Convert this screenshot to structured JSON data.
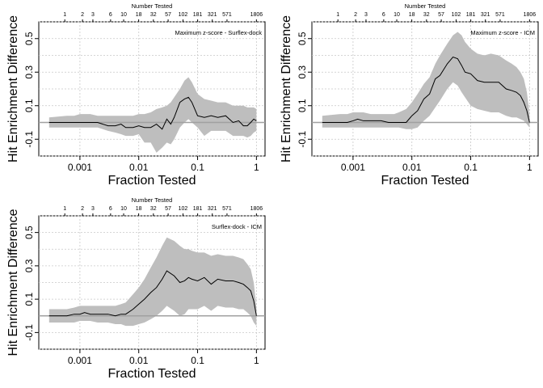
{
  "chart_data": [
    {
      "type": "area",
      "panel_label": "Maximum z-score - Surflex-dock",
      "xlabel": "Fraction Tested",
      "ylabel": "Hit Enrichment Difference",
      "top_axis_label": "Number Tested",
      "x_scale": "log",
      "xlim": [
        0.0002,
        1.4
      ],
      "ylim": [
        -0.2,
        0.6
      ],
      "x_ticks": [
        0.001,
        0.01,
        0.1,
        1
      ],
      "x_tick_labels": [
        "0.001",
        "0.01",
        "0.1",
        "1"
      ],
      "y_ticks": [
        -0.1,
        0.1,
        0.3,
        0.5
      ],
      "y_tick_labels": [
        "-0.1",
        "0.1",
        "0.3",
        "0.5"
      ],
      "top_ticks": [
        1,
        2,
        3,
        6,
        10,
        18,
        32,
        57,
        102,
        181,
        321,
        571,
        1806
      ],
      "top_tick_labels": [
        "1",
        "2",
        "3",
        "6",
        "10",
        "18",
        "32",
        "57",
        "102",
        "181",
        "321",
        "571",
        "1806"
      ],
      "reference_line": 0,
      "series": [
        {
          "name": "mean",
          "x": [
            0.0003,
            0.0006,
            0.0008,
            0.001,
            0.0015,
            0.002,
            0.003,
            0.004,
            0.005,
            0.006,
            0.008,
            0.01,
            0.0125,
            0.016,
            0.02,
            0.025,
            0.03,
            0.035,
            0.04,
            0.05,
            0.06,
            0.07,
            0.08,
            0.1,
            0.13,
            0.17,
            0.22,
            0.3,
            0.4,
            0.5,
            0.6,
            0.7,
            0.8,
            0.9,
            1.0
          ],
          "values": [
            0.0,
            0.0,
            0.0,
            0.0,
            0.0,
            0.0,
            -0.02,
            -0.02,
            -0.01,
            -0.03,
            -0.03,
            -0.02,
            -0.03,
            -0.03,
            -0.01,
            -0.04,
            0.02,
            -0.01,
            0.03,
            0.12,
            0.14,
            0.15,
            0.12,
            0.04,
            0.03,
            0.04,
            0.03,
            0.04,
            0.0,
            0.01,
            -0.02,
            -0.02,
            0.0,
            0.02,
            0.01
          ]
        },
        {
          "name": "band_upper",
          "x": [
            0.0003,
            0.0006,
            0.0008,
            0.001,
            0.0015,
            0.002,
            0.003,
            0.004,
            0.005,
            0.006,
            0.008,
            0.01,
            0.0125,
            0.016,
            0.02,
            0.025,
            0.03,
            0.035,
            0.04,
            0.05,
            0.06,
            0.07,
            0.08,
            0.1,
            0.13,
            0.17,
            0.22,
            0.3,
            0.4,
            0.5,
            0.6,
            0.7,
            0.8,
            0.9,
            1.0
          ],
          "values": [
            0.03,
            0.04,
            0.04,
            0.05,
            0.05,
            0.04,
            0.04,
            0.04,
            0.04,
            0.04,
            0.04,
            0.05,
            0.05,
            0.06,
            0.08,
            0.09,
            0.1,
            0.12,
            0.15,
            0.2,
            0.25,
            0.27,
            0.24,
            0.17,
            0.14,
            0.13,
            0.12,
            0.12,
            0.1,
            0.1,
            0.1,
            0.09,
            0.09,
            0.09,
            0.08
          ]
        },
        {
          "name": "band_lower",
          "x": [
            0.0003,
            0.0006,
            0.0008,
            0.001,
            0.0015,
            0.002,
            0.003,
            0.004,
            0.005,
            0.006,
            0.008,
            0.01,
            0.0125,
            0.016,
            0.02,
            0.025,
            0.03,
            0.035,
            0.04,
            0.05,
            0.06,
            0.07,
            0.08,
            0.1,
            0.13,
            0.17,
            0.22,
            0.3,
            0.4,
            0.5,
            0.6,
            0.7,
            0.8,
            0.9,
            1.0
          ],
          "values": [
            -0.03,
            -0.03,
            -0.03,
            -0.03,
            -0.03,
            -0.03,
            -0.05,
            -0.06,
            -0.07,
            -0.08,
            -0.08,
            -0.07,
            -0.12,
            -0.12,
            -0.18,
            -0.15,
            -0.12,
            -0.13,
            -0.1,
            -0.03,
            0.0,
            0.02,
            0.0,
            -0.03,
            -0.08,
            -0.05,
            -0.05,
            -0.05,
            -0.08,
            -0.08,
            -0.08,
            -0.09,
            -0.08,
            -0.06,
            -0.05
          ]
        }
      ]
    },
    {
      "type": "area",
      "panel_label": "Maximum z-score - ICM",
      "xlabel": "Fraction Tested",
      "ylabel": "Hit Enrichment Difference",
      "top_axis_label": "Number Tested",
      "x_scale": "log",
      "xlim": [
        0.0002,
        1.4
      ],
      "ylim": [
        -0.2,
        0.6
      ],
      "x_ticks": [
        0.001,
        0.01,
        0.1,
        1
      ],
      "x_tick_labels": [
        "0.001",
        "0.01",
        "0.1",
        "1"
      ],
      "y_ticks": [
        -0.1,
        0.1,
        0.3,
        0.5
      ],
      "y_tick_labels": [
        "-0.1",
        "0.1",
        "0.3",
        "0.5"
      ],
      "top_ticks": [
        1,
        2,
        3,
        6,
        10,
        18,
        32,
        57,
        102,
        181,
        321,
        571,
        1806
      ],
      "top_tick_labels": [
        "1",
        "2",
        "3",
        "6",
        "10",
        "18",
        "32",
        "57",
        "102",
        "181",
        "321",
        "571",
        "1806"
      ],
      "reference_line": 0,
      "series": [
        {
          "name": "mean",
          "x": [
            0.0003,
            0.0006,
            0.0008,
            0.001,
            0.0012,
            0.0015,
            0.002,
            0.003,
            0.004,
            0.005,
            0.006,
            0.008,
            0.01,
            0.0125,
            0.016,
            0.02,
            0.025,
            0.03,
            0.04,
            0.05,
            0.06,
            0.07,
            0.08,
            0.1,
            0.13,
            0.17,
            0.22,
            0.3,
            0.4,
            0.5,
            0.6,
            0.7,
            0.8,
            0.9,
            1.0
          ],
          "values": [
            0.0,
            0.0,
            0.0,
            0.01,
            0.02,
            0.01,
            0.01,
            0.01,
            0.0,
            0.0,
            0.0,
            0.0,
            0.04,
            0.07,
            0.14,
            0.17,
            0.26,
            0.28,
            0.35,
            0.39,
            0.38,
            0.34,
            0.3,
            0.29,
            0.25,
            0.24,
            0.24,
            0.24,
            0.2,
            0.19,
            0.18,
            0.16,
            0.12,
            0.07,
            0.0
          ]
        },
        {
          "name": "band_upper",
          "x": [
            0.0003,
            0.0006,
            0.0008,
            0.001,
            0.0012,
            0.0015,
            0.002,
            0.003,
            0.004,
            0.005,
            0.006,
            0.008,
            0.01,
            0.0125,
            0.016,
            0.02,
            0.025,
            0.03,
            0.04,
            0.05,
            0.06,
            0.07,
            0.08,
            0.1,
            0.13,
            0.17,
            0.22,
            0.3,
            0.4,
            0.5,
            0.6,
            0.7,
            0.8,
            0.9,
            1.0
          ],
          "values": [
            0.04,
            0.05,
            0.05,
            0.06,
            0.06,
            0.06,
            0.05,
            0.05,
            0.05,
            0.05,
            0.06,
            0.08,
            0.12,
            0.17,
            0.23,
            0.27,
            0.35,
            0.4,
            0.47,
            0.52,
            0.54,
            0.52,
            0.48,
            0.44,
            0.41,
            0.4,
            0.41,
            0.4,
            0.37,
            0.35,
            0.33,
            0.3,
            0.26,
            0.18,
            0.05
          ]
        },
        {
          "name": "band_lower",
          "x": [
            0.0003,
            0.0006,
            0.0008,
            0.001,
            0.0012,
            0.0015,
            0.002,
            0.003,
            0.004,
            0.005,
            0.006,
            0.008,
            0.01,
            0.0125,
            0.016,
            0.02,
            0.025,
            0.03,
            0.04,
            0.05,
            0.06,
            0.07,
            0.08,
            0.1,
            0.13,
            0.17,
            0.22,
            0.3,
            0.4,
            0.5,
            0.6,
            0.7,
            0.8,
            0.9,
            1.0
          ],
          "values": [
            -0.03,
            -0.03,
            -0.03,
            -0.03,
            -0.03,
            -0.03,
            -0.03,
            -0.03,
            -0.03,
            -0.03,
            -0.03,
            -0.04,
            -0.04,
            -0.03,
            0.01,
            0.04,
            0.09,
            0.13,
            0.2,
            0.24,
            0.22,
            0.18,
            0.15,
            0.1,
            0.08,
            0.07,
            0.06,
            0.06,
            0.04,
            0.03,
            0.03,
            0.02,
            0.01,
            -0.01,
            -0.03
          ]
        }
      ]
    },
    {
      "type": "area",
      "panel_label": "Surflex-dock - ICM",
      "xlabel": "Fraction Tested",
      "ylabel": "Hit Enrichment Difference",
      "top_axis_label": "Number Tested",
      "x_scale": "log",
      "xlim": [
        0.0002,
        1.4
      ],
      "ylim": [
        -0.2,
        0.6
      ],
      "x_ticks": [
        0.001,
        0.01,
        0.1,
        1
      ],
      "x_tick_labels": [
        "0.001",
        "0.01",
        "0.1",
        "1"
      ],
      "y_ticks": [
        -0.1,
        0.1,
        0.3,
        0.5
      ],
      "y_tick_labels": [
        "-0.1",
        "0.1",
        "0.3",
        "0.5"
      ],
      "top_ticks": [
        1,
        2,
        3,
        6,
        10,
        18,
        32,
        57,
        102,
        181,
        321,
        571,
        1806
      ],
      "top_tick_labels": [
        "1",
        "2",
        "3",
        "6",
        "10",
        "18",
        "32",
        "57",
        "102",
        "181",
        "321",
        "571",
        "1806"
      ],
      "reference_line": 0,
      "series": [
        {
          "name": "mean",
          "x": [
            0.0003,
            0.0006,
            0.0008,
            0.001,
            0.0012,
            0.0015,
            0.002,
            0.003,
            0.004,
            0.005,
            0.006,
            0.008,
            0.01,
            0.0125,
            0.016,
            0.02,
            0.025,
            0.03,
            0.04,
            0.05,
            0.06,
            0.07,
            0.08,
            0.1,
            0.13,
            0.17,
            0.22,
            0.3,
            0.4,
            0.5,
            0.6,
            0.7,
            0.8,
            0.9,
            1.0
          ],
          "values": [
            0.0,
            0.0,
            0.01,
            0.01,
            0.02,
            0.01,
            0.01,
            0.01,
            0.0,
            0.01,
            0.01,
            0.04,
            0.07,
            0.1,
            0.14,
            0.17,
            0.22,
            0.27,
            0.24,
            0.2,
            0.21,
            0.23,
            0.22,
            0.21,
            0.23,
            0.19,
            0.22,
            0.21,
            0.21,
            0.2,
            0.19,
            0.17,
            0.15,
            0.09,
            0.0
          ]
        },
        {
          "name": "band_upper",
          "x": [
            0.0003,
            0.0006,
            0.0008,
            0.001,
            0.0012,
            0.0015,
            0.002,
            0.003,
            0.004,
            0.005,
            0.006,
            0.008,
            0.01,
            0.0125,
            0.016,
            0.02,
            0.025,
            0.03,
            0.04,
            0.05,
            0.06,
            0.07,
            0.08,
            0.1,
            0.13,
            0.17,
            0.22,
            0.3,
            0.4,
            0.5,
            0.6,
            0.7,
            0.8,
            0.9,
            1.0
          ],
          "values": [
            0.04,
            0.04,
            0.05,
            0.06,
            0.06,
            0.06,
            0.06,
            0.06,
            0.06,
            0.07,
            0.08,
            0.13,
            0.17,
            0.22,
            0.29,
            0.35,
            0.42,
            0.47,
            0.45,
            0.42,
            0.4,
            0.4,
            0.39,
            0.38,
            0.38,
            0.36,
            0.37,
            0.36,
            0.36,
            0.35,
            0.34,
            0.31,
            0.28,
            0.2,
            0.05
          ]
        },
        {
          "name": "band_lower",
          "x": [
            0.0003,
            0.0006,
            0.0008,
            0.001,
            0.0012,
            0.0015,
            0.002,
            0.003,
            0.004,
            0.005,
            0.006,
            0.008,
            0.01,
            0.0125,
            0.016,
            0.02,
            0.025,
            0.03,
            0.04,
            0.05,
            0.06,
            0.07,
            0.08,
            0.1,
            0.13,
            0.17,
            0.22,
            0.3,
            0.4,
            0.5,
            0.6,
            0.7,
            0.8,
            0.9,
            1.0
          ],
          "values": [
            -0.04,
            -0.04,
            -0.04,
            -0.03,
            -0.03,
            -0.03,
            -0.04,
            -0.04,
            -0.05,
            -0.05,
            -0.06,
            -0.06,
            -0.05,
            -0.04,
            -0.02,
            0.0,
            0.03,
            0.06,
            0.03,
            0.0,
            0.01,
            0.04,
            0.04,
            0.04,
            0.06,
            0.03,
            0.06,
            0.05,
            0.05,
            0.04,
            0.04,
            0.02,
            0.0,
            -0.04,
            -0.06
          ]
        }
      ]
    }
  ]
}
